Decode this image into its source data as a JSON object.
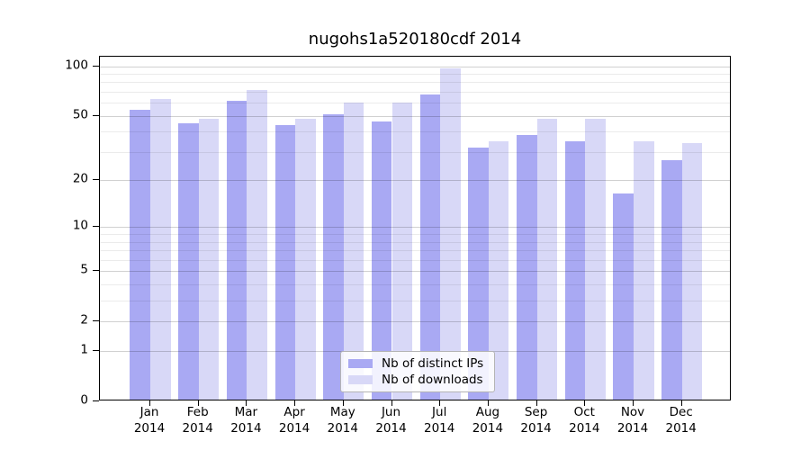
{
  "chart_data": {
    "type": "bar",
    "title": "nugohs1a520180cdf 2014",
    "categories": [
      "Jan 2014",
      "Feb 2014",
      "Mar 2014",
      "Apr 2014",
      "May 2014",
      "Jun 2014",
      "Jul 2014",
      "Aug 2014",
      "Sep 2014",
      "Oct 2014",
      "Nov 2014",
      "Dec 2014"
    ],
    "series": [
      {
        "name": "Nb of distinct IPs",
        "color": "#a9a9f3",
        "values": [
          53,
          44,
          60,
          43,
          50,
          45,
          66,
          31,
          37,
          34,
          16,
          26
        ]
      },
      {
        "name": "Nb of downloads",
        "color": "#d8d8f7",
        "values": [
          62,
          47,
          70,
          47,
          59,
          59,
          94,
          34,
          47,
          47,
          34,
          33
        ]
      }
    ],
    "yscale": "log1p",
    "y_ticks": [
      0,
      1,
      2,
      5,
      10,
      20,
      50,
      100
    ],
    "minor_gridlines": [
      3,
      4,
      6,
      7,
      8,
      9,
      30,
      40,
      60,
      70,
      80,
      90
    ],
    "ylim": [
      0,
      114
    ],
    "grid": true,
    "legend_position": "bottom-center",
    "xlabel": "",
    "ylabel": ""
  }
}
